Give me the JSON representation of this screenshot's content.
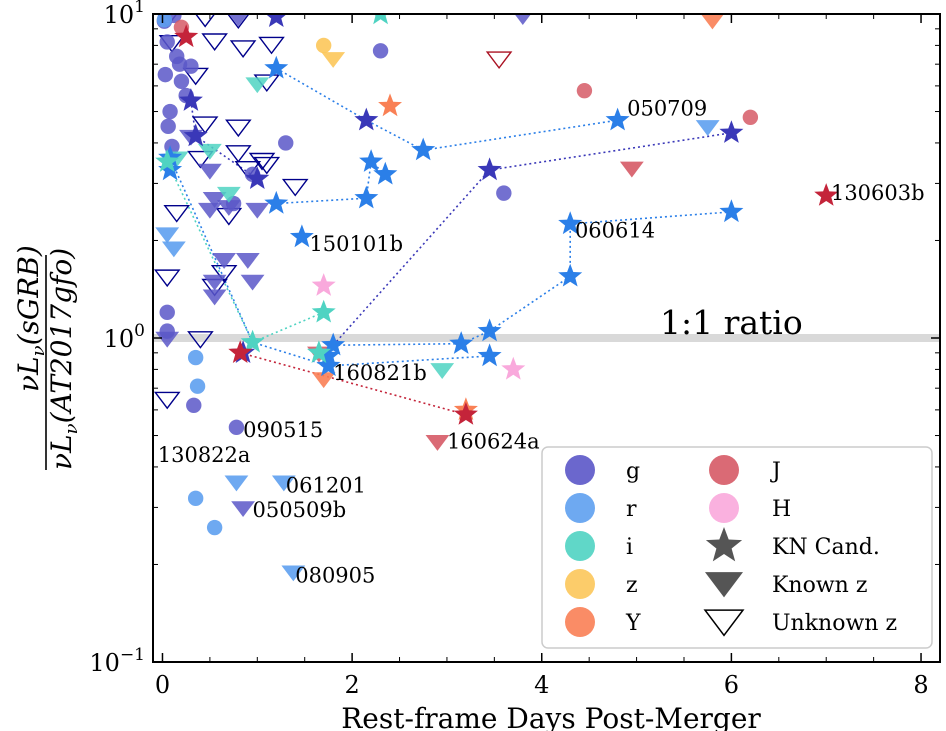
{
  "chart_data": {
    "type": "scatter",
    "xlabel": "Rest-frame Days Post-Merger",
    "ylabel": "νLν(sGRB) / νLν(AT2017gfo)",
    "xlim": [
      -0.1,
      8.2
    ],
    "ylim": [
      0.1,
      10
    ],
    "y_scale": "log",
    "grid": false,
    "x_ticks": [
      "0",
      "2",
      "4",
      "6",
      "8"
    ],
    "y_ticks": [
      {
        "base": "10",
        "exp": "1",
        "value": 10
      },
      {
        "base": "10",
        "exp": "0",
        "value": 1
      },
      {
        "base": "10",
        "exp": "−1",
        "value": 0.1
      }
    ],
    "reference_line": {
      "y": 1,
      "label": "1:1 ratio"
    },
    "colors": {
      "g": "#5b57c8",
      "g_dark": "#2f2ca8",
      "r": "#5ea0f0",
      "r_star": "#2b7fe8",
      "i": "#4fd3c2",
      "z": "#fcc65a",
      "Y": "#f98055",
      "J": "#d65a66",
      "H": "#f9a9dc",
      "unknown_edge": "#00008b",
      "unknown_edge_red": "#aa1122"
    },
    "legend": {
      "placement": "lower-right",
      "entries": [
        {
          "label": "g",
          "marker": "circle",
          "color": "#5b57c8"
        },
        {
          "label": "r",
          "marker": "circle",
          "color": "#5ea0f0"
        },
        {
          "label": "i",
          "marker": "circle",
          "color": "#4fd3c2"
        },
        {
          "label": "z",
          "marker": "circle",
          "color": "#fcc65a"
        },
        {
          "label": "Y",
          "marker": "circle",
          "color": "#f98055"
        },
        {
          "label": "J",
          "marker": "circle",
          "color": "#d65a66"
        },
        {
          "label": "H",
          "marker": "circle",
          "color": "#f9a9dc"
        },
        {
          "label": "KN Cand.",
          "marker": "star",
          "color": "#555555"
        },
        {
          "label": "Known z",
          "marker": "tri-filled",
          "color": "#555555"
        },
        {
          "label": "Unknown z",
          "marker": "tri-open",
          "color": "#000000"
        }
      ]
    },
    "annotations": [
      {
        "text": "050709",
        "x": 4.9,
        "y": 5.1
      },
      {
        "text": "130603b",
        "x": 7.05,
        "y": 2.8
      },
      {
        "text": "060614",
        "x": 4.35,
        "y": 2.15
      },
      {
        "text": "150101b",
        "x": 1.55,
        "y": 1.95
      },
      {
        "text": "160821b",
        "x": 1.8,
        "y": 0.78
      },
      {
        "text": "090515",
        "x": 0.85,
        "y": 0.52
      },
      {
        "text": "160624a",
        "x": 3.0,
        "y": 0.48
      },
      {
        "text": "130822a",
        "x": -0.05,
        "y": 0.435
      },
      {
        "text": "061201",
        "x": 1.3,
        "y": 0.35
      },
      {
        "text": "050509b",
        "x": 0.95,
        "y": 0.295
      },
      {
        "text": "080905",
        "x": 1.4,
        "y": 0.185
      }
    ],
    "series": [
      {
        "name": "g",
        "marker": "circle",
        "color": "#5b57c8",
        "alpha": 0.85,
        "points": [
          [
            0.02,
            9.5
          ],
          [
            0.05,
            8.2
          ],
          [
            0.12,
            9.9
          ],
          [
            0.03,
            6.5
          ],
          [
            0.08,
            5.0
          ],
          [
            0.06,
            4.5
          ],
          [
            0.15,
            7.4
          ],
          [
            0.2,
            6.2
          ],
          [
            0.25,
            5.6
          ],
          [
            0.3,
            6.9
          ],
          [
            0.1,
            3.9
          ],
          [
            0.05,
            1.2
          ],
          [
            0.05,
            1.05
          ],
          [
            0.75,
            2.6
          ],
          [
            0.95,
            3.2
          ],
          [
            1.3,
            4.0
          ],
          [
            2.3,
            7.7
          ],
          [
            3.6,
            2.8
          ],
          [
            0.78,
            0.53
          ],
          [
            0.33,
            0.62
          ],
          [
            0.18,
            7.0
          ]
        ]
      },
      {
        "name": "r",
        "marker": "circle",
        "color": "#5ea0f0",
        "alpha": 0.9,
        "points": [
          [
            0.35,
            0.87
          ],
          [
            0.37,
            0.71
          ],
          [
            0.35,
            0.32
          ],
          [
            0.55,
            0.26
          ],
          [
            0.02,
            9.6
          ]
        ]
      },
      {
        "name": "z",
        "marker": "circle",
        "color": "#fcc65a",
        "alpha": 0.9,
        "points": [
          [
            1.7,
            8.0
          ]
        ]
      },
      {
        "name": "J",
        "marker": "circle",
        "color": "#d65a66",
        "alpha": 0.85,
        "points": [
          [
            4.45,
            5.8
          ],
          [
            6.2,
            4.8
          ],
          [
            0.2,
            9.1
          ]
        ]
      },
      {
        "name": "KN Cand. g",
        "marker": "star",
        "color": "#3a38b8",
        "points": [
          [
            0.3,
            5.4
          ],
          [
            0.35,
            4.2
          ],
          [
            1.0,
            3.1
          ],
          [
            2.15,
            4.7
          ],
          [
            3.45,
            3.3
          ],
          [
            6.0,
            4.3
          ],
          [
            1.2,
            9.8
          ],
          [
            0.85,
            0.9
          ]
        ]
      },
      {
        "name": "KN Cand. r",
        "marker": "star",
        "color": "#2b7fe8",
        "points": [
          [
            1.2,
            6.8
          ],
          [
            1.2,
            2.6
          ],
          [
            2.2,
            3.5
          ],
          [
            2.15,
            2.7
          ],
          [
            2.75,
            3.8
          ],
          [
            2.35,
            3.2
          ],
          [
            4.8,
            4.7
          ],
          [
            1.47,
            2.05
          ],
          [
            0.08,
            3.6
          ],
          [
            0.08,
            3.3
          ],
          [
            4.3,
            2.25
          ],
          [
            6.0,
            2.45
          ],
          [
            4.3,
            1.55
          ],
          [
            3.45,
            1.05
          ],
          [
            3.45,
            0.88
          ],
          [
            3.15,
            0.96
          ],
          [
            1.75,
            0.82
          ],
          [
            1.8,
            0.95
          ],
          [
            1.75,
            0.88
          ]
        ]
      },
      {
        "name": "KN Cand. i",
        "marker": "star",
        "color": "#4fd3c2",
        "points": [
          [
            0.05,
            3.5
          ],
          [
            0.95,
            0.97
          ],
          [
            1.7,
            1.2
          ],
          [
            1.65,
            0.9
          ],
          [
            2.3,
            10.0
          ]
        ]
      },
      {
        "name": "KN Cand. Y",
        "marker": "star",
        "color": "#f98055",
        "points": [
          [
            2.4,
            5.2
          ],
          [
            3.2,
            0.6
          ]
        ]
      },
      {
        "name": "KN Cand. J",
        "marker": "star",
        "color": "#c4243a",
        "points": [
          [
            0.82,
            0.9
          ],
          [
            3.2,
            0.58
          ],
          [
            7.0,
            2.75
          ],
          [
            0.25,
            8.5
          ]
        ]
      },
      {
        "name": "KN Cand. H",
        "marker": "star",
        "color": "#f9a9dc",
        "points": [
          [
            1.7,
            1.45
          ],
          [
            3.7,
            0.8
          ]
        ]
      },
      {
        "name": "Known z g",
        "marker": "tri-filled",
        "color": "#5b57c8",
        "alpha": 0.85,
        "points": [
          [
            0.5,
            3.3
          ],
          [
            0.5,
            2.5
          ],
          [
            0.55,
            2.7
          ],
          [
            0.55,
            1.5
          ],
          [
            0.55,
            1.35
          ],
          [
            0.65,
            1.75
          ],
          [
            0.9,
            1.75
          ],
          [
            0.95,
            1.5
          ],
          [
            0.7,
            2.55
          ],
          [
            1.0,
            2.5
          ],
          [
            0.05,
            1.0
          ],
          [
            0.85,
            0.3
          ],
          [
            0.8,
            9.8
          ],
          [
            3.8,
            9.9
          ],
          [
            0.3,
            4.2
          ]
        ]
      },
      {
        "name": "Known z r",
        "marker": "tri-filled",
        "color": "#5ea0f0",
        "alpha": 0.9,
        "points": [
          [
            0.78,
            0.36
          ],
          [
            1.28,
            0.36
          ],
          [
            1.38,
            0.19
          ],
          [
            0.12,
            1.9
          ],
          [
            5.75,
            4.5
          ],
          [
            0.05,
            2.1
          ]
        ]
      },
      {
        "name": "Known z i",
        "marker": "tri-filled",
        "color": "#4fd3c2",
        "alpha": 0.85,
        "points": [
          [
            1.0,
            6.1
          ],
          [
            0.7,
            2.8
          ],
          [
            0.5,
            3.8
          ],
          [
            2.95,
            0.8
          ],
          [
            0.15,
            3.6
          ]
        ]
      },
      {
        "name": "Known z z",
        "marker": "tri-filled",
        "color": "#fcc65a",
        "alpha": 0.9,
        "points": [
          [
            1.8,
            7.3
          ]
        ]
      },
      {
        "name": "Known z Y",
        "marker": "tri-filled",
        "color": "#f98055",
        "alpha": 0.9,
        "points": [
          [
            5.8,
            9.6
          ],
          [
            1.7,
            0.75
          ]
        ]
      },
      {
        "name": "Known z J",
        "marker": "tri-filled",
        "color": "#d65a66",
        "alpha": 0.9,
        "points": [
          [
            2.9,
            0.48
          ],
          [
            4.95,
            3.35
          ],
          [
            1.65,
            0.9
          ]
        ]
      },
      {
        "name": "Unknown z",
        "marker": "tri-open",
        "color": "#00008b",
        "points": [
          [
            0.05,
            9.8
          ],
          [
            0.1,
            8.2
          ],
          [
            0.45,
            9.8
          ],
          [
            0.8,
            9.7
          ],
          [
            0.55,
            8.3
          ],
          [
            0.85,
            7.9
          ],
          [
            1.15,
            8.1
          ],
          [
            0.35,
            6.5
          ],
          [
            1.1,
            6.2
          ],
          [
            0.45,
            4.6
          ],
          [
            0.8,
            4.5
          ],
          [
            0.4,
            3.6
          ],
          [
            0.8,
            3.75
          ],
          [
            1.05,
            3.55
          ],
          [
            0.9,
            3.35
          ],
          [
            1.1,
            3.45
          ],
          [
            0.7,
            2.4
          ],
          [
            0.15,
            2.45
          ],
          [
            0.05,
            1.55
          ],
          [
            0.65,
            1.6
          ],
          [
            0.55,
            1.45
          ],
          [
            0.4,
            1.0
          ],
          [
            0.05,
            0.65
          ],
          [
            1.4,
            2.95
          ]
        ]
      },
      {
        "name": "Unknown z red",
        "marker": "tri-open",
        "color": "#aa1122",
        "points": [
          [
            3.55,
            7.3
          ]
        ]
      }
    ],
    "connectors": [
      {
        "color": "#2b7fe8",
        "points": [
          [
            1.2,
            6.8
          ],
          [
            2.15,
            4.7
          ],
          [
            2.75,
            3.8
          ],
          [
            4.8,
            4.7
          ]
        ]
      },
      {
        "color": "#2b7fe8",
        "points": [
          [
            1.2,
            2.6
          ],
          [
            2.15,
            2.7
          ],
          [
            2.2,
            3.5
          ],
          [
            2.35,
            3.2
          ]
        ]
      },
      {
        "color": "#2b7fe8",
        "points": [
          [
            4.3,
            2.25
          ],
          [
            6.0,
            2.45
          ]
        ]
      },
      {
        "color": "#2b7fe8",
        "points": [
          [
            1.8,
            0.95
          ],
          [
            3.15,
            0.96
          ],
          [
            3.45,
            1.05
          ],
          [
            4.3,
            1.55
          ],
          [
            4.3,
            2.25
          ]
        ]
      },
      {
        "color": "#2b7fe8",
        "points": [
          [
            0.08,
            3.6
          ],
          [
            0.95,
            0.97
          ],
          [
            1.75,
            0.82
          ],
          [
            3.45,
            0.88
          ]
        ]
      },
      {
        "color": "#3a38b8",
        "points": [
          [
            1.8,
            0.95
          ],
          [
            3.45,
            3.3
          ],
          [
            6.0,
            4.3
          ]
        ]
      },
      {
        "color": "#3a38b8",
        "points": [
          [
            0.3,
            5.4
          ],
          [
            0.35,
            4.2
          ],
          [
            1.0,
            3.1
          ]
        ]
      },
      {
        "color": "#4fd3c2",
        "points": [
          [
            0.05,
            3.5
          ],
          [
            0.95,
            0.97
          ],
          [
            1.7,
            1.2
          ]
        ]
      },
      {
        "color": "#c4243a",
        "points": [
          [
            0.82,
            0.9
          ],
          [
            3.2,
            0.58
          ]
        ]
      }
    ]
  }
}
